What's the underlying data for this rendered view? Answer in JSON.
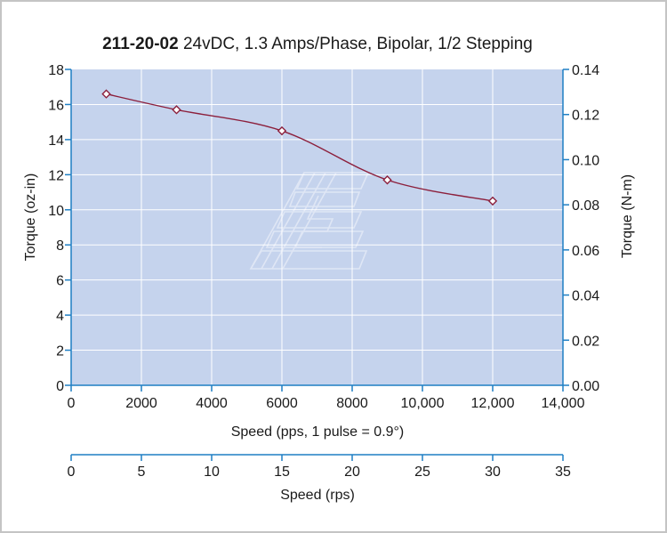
{
  "chart_data": {
    "type": "line",
    "title_bold": "211-20-02",
    "title_rest": " 24vDC, 1.3 Amps/Phase, Bipolar, 1/2 Stepping",
    "xlabel": "Speed (pps, 1 pulse = 0.9°)",
    "ylabel": "Torque (oz-in)",
    "y2label": "Torque (N-m)",
    "x2label": "Speed (rps)",
    "xlim": [
      0,
      14000
    ],
    "ylim": [
      0,
      18
    ],
    "y2lim": [
      0,
      0.14
    ],
    "x2lim": [
      0,
      35
    ],
    "x_ticks": [
      "0",
      "2000",
      "4000",
      "6000",
      "8000",
      "10,000",
      "12,000",
      "14,000"
    ],
    "y_ticks": [
      "0",
      "2",
      "4",
      "6",
      "8",
      "10",
      "12",
      "14",
      "16",
      "18"
    ],
    "y2_ticks": [
      "0.00",
      "0.02",
      "0.04",
      "0.06",
      "0.08",
      "0.10",
      "0.12",
      "0.14"
    ],
    "x2_ticks": [
      "0",
      "5",
      "10",
      "15",
      "20",
      "25",
      "30",
      "35"
    ],
    "grid": true,
    "series": [
      {
        "x": [
          1000,
          3000,
          6000,
          9000,
          12000
        ],
        "y": [
          16.6,
          15.7,
          14.5,
          11.7,
          10.5
        ]
      }
    ],
    "colors": {
      "plot_bg": "#c5d3ed",
      "axis": "#1f7fc4",
      "grid": "#ffffff",
      "line": "#8c1f3c"
    }
  }
}
